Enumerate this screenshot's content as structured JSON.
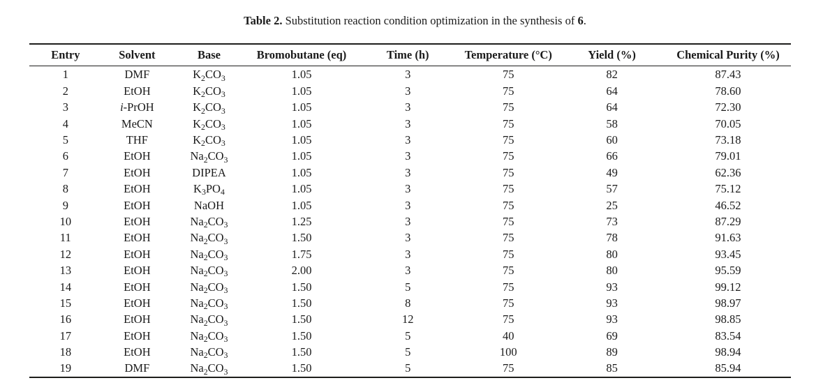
{
  "caption": {
    "label": "Table 2.",
    "body": "Substitution reaction condition optimization in the synthesis of ",
    "compound_bold": "6",
    "suffix": "."
  },
  "table": {
    "columns": [
      "Entry",
      "Solvent",
      "Base",
      "Bromobutane (eq)",
      "Time (h)",
      "Temperature (°C)",
      "Yield (%)",
      "Chemical Purity (%)"
    ],
    "col_widths": [
      "9.5%",
      "9.3%",
      "9.6%",
      "14.7%",
      "13.2%",
      "13.2%",
      "14.0%",
      "16.5%"
    ],
    "rows": [
      [
        "1",
        "DMF",
        "K₂CO₃",
        "1.05",
        "3",
        "75",
        "82",
        "87.43"
      ],
      [
        "2",
        "EtOH",
        "K₂CO₃",
        "1.05",
        "3",
        "75",
        "64",
        "78.60"
      ],
      [
        "3",
        "i-PrOH",
        "K₂CO₃",
        "1.05",
        "3",
        "75",
        "64",
        "72.30"
      ],
      [
        "4",
        "MeCN",
        "K₂CO₃",
        "1.05",
        "3",
        "75",
        "58",
        "70.05"
      ],
      [
        "5",
        "THF",
        "K₂CO₃",
        "1.05",
        "3",
        "75",
        "60",
        "73.18"
      ],
      [
        "6",
        "EtOH",
        "Na₂CO₃",
        "1.05",
        "3",
        "75",
        "66",
        "79.01"
      ],
      [
        "7",
        "EtOH",
        "DIPEA",
        "1.05",
        "3",
        "75",
        "49",
        "62.36"
      ],
      [
        "8",
        "EtOH",
        "K₃PO₄",
        "1.05",
        "3",
        "75",
        "57",
        "75.12"
      ],
      [
        "9",
        "EtOH",
        "NaOH",
        "1.05",
        "3",
        "75",
        "25",
        "46.52"
      ],
      [
        "10",
        "EtOH",
        "Na₂CO₃",
        "1.25",
        "3",
        "75",
        "73",
        "87.29"
      ],
      [
        "11",
        "EtOH",
        "Na₂CO₃",
        "1.50",
        "3",
        "75",
        "78",
        "91.63"
      ],
      [
        "12",
        "EtOH",
        "Na₂CO₃",
        "1.75",
        "3",
        "75",
        "80",
        "93.45"
      ],
      [
        "13",
        "EtOH",
        "Na₂CO₃",
        "2.00",
        "3",
        "75",
        "80",
        "95.59"
      ],
      [
        "14",
        "EtOH",
        "Na₂CO₃",
        "1.50",
        "5",
        "75",
        "93",
        "99.12"
      ],
      [
        "15",
        "EtOH",
        "Na₂CO₃",
        "1.50",
        "8",
        "75",
        "93",
        "98.97"
      ],
      [
        "16",
        "EtOH",
        "Na₂CO₃",
        "1.50",
        "12",
        "75",
        "93",
        "98.85"
      ],
      [
        "17",
        "EtOH",
        "Na₂CO₃",
        "1.50",
        "5",
        "40",
        "69",
        "83.54"
      ],
      [
        "18",
        "EtOH",
        "Na₂CO₃",
        "1.50",
        "5",
        "100",
        "89",
        "98.94"
      ],
      [
        "19",
        "DMF",
        "Na₂CO₃",
        "1.50",
        "5",
        "75",
        "85",
        "85.94"
      ]
    ]
  }
}
